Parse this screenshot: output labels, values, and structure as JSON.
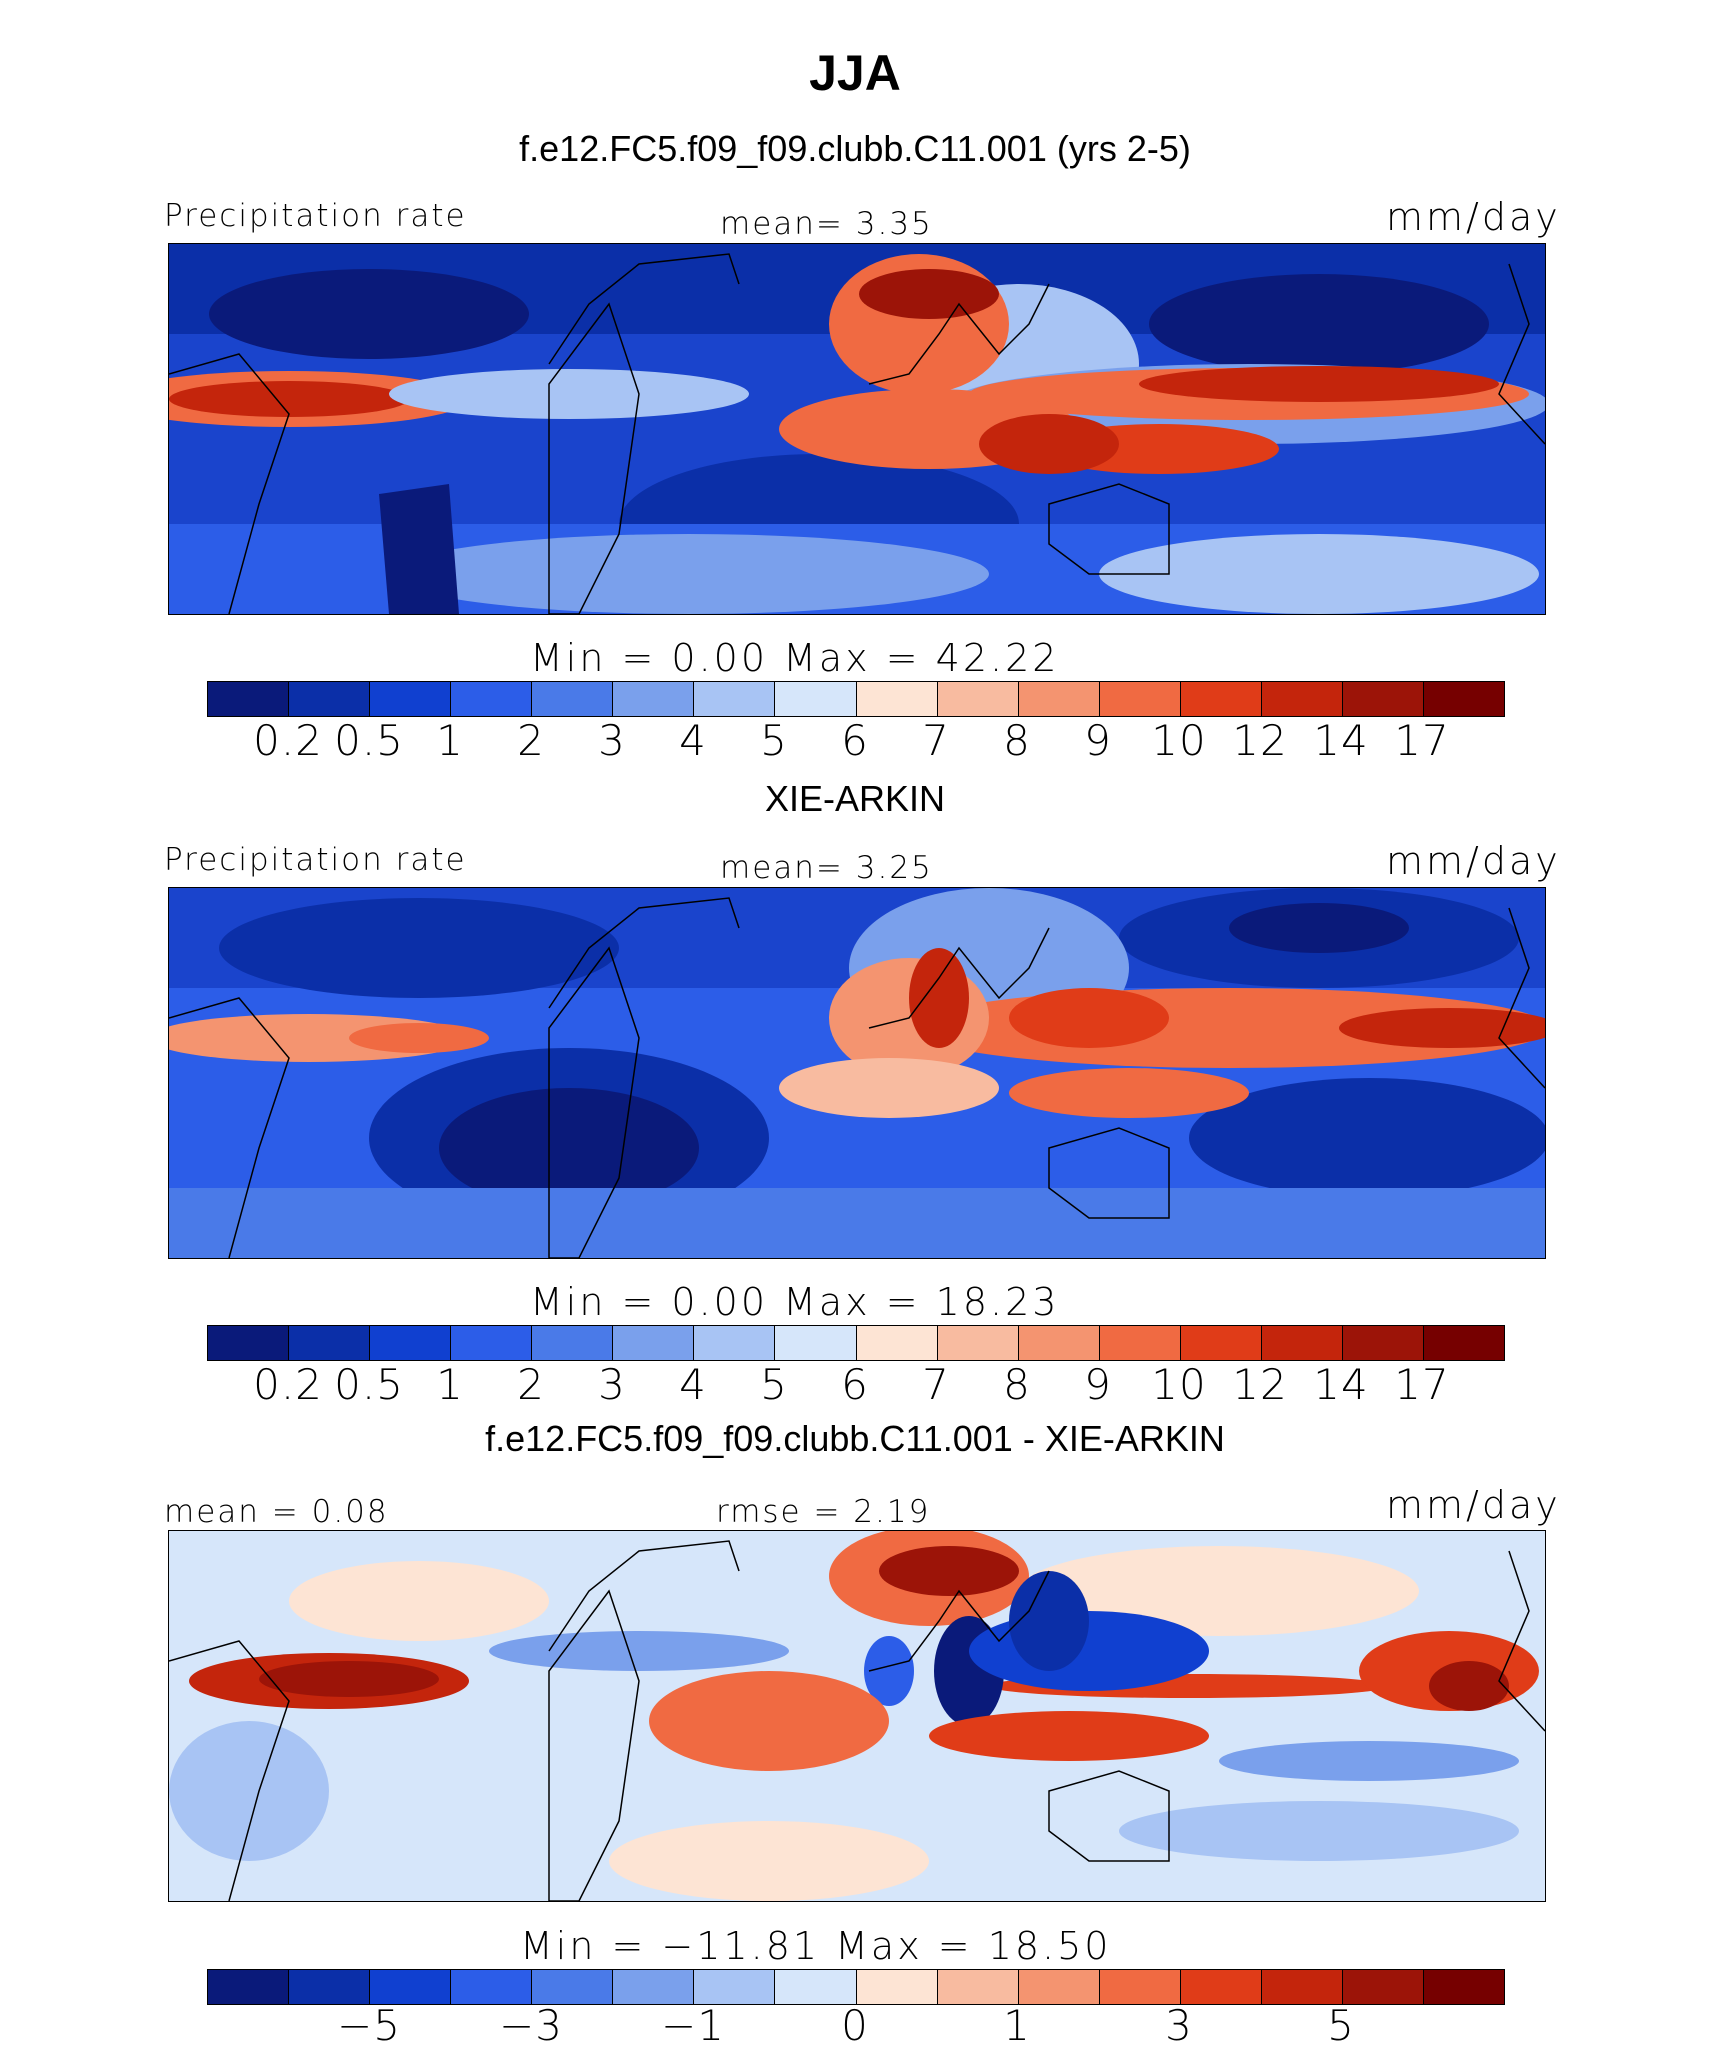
{
  "title": "JJA",
  "panels": [
    {
      "subtitle": "f.e12.FC5.f09_f09.clubb.C11.001 (yrs 2-5)",
      "left_label": "Precipitation rate",
      "center_label": "mean=    3.35",
      "right_label": "mm/day",
      "minmax_label": "Min  =     0.00  Max  =    42.22",
      "colorbar_ticks": [
        "0.2",
        "0.5",
        "1",
        "2",
        "3",
        "4",
        "5",
        "6",
        "7",
        "8",
        "9",
        "10",
        "12",
        "14",
        "17"
      ],
      "stats": {
        "mean": 3.35,
        "min": 0.0,
        "max": 42.22
      }
    },
    {
      "subtitle": "XIE-ARKIN",
      "left_label": "Precipitation rate",
      "center_label": "mean=    3.25",
      "right_label": "mm/day",
      "minmax_label": "Min  =     0.00  Max  =    18.23",
      "colorbar_ticks": [
        "0.2",
        "0.5",
        "1",
        "2",
        "3",
        "4",
        "5",
        "6",
        "7",
        "8",
        "9",
        "10",
        "12",
        "14",
        "17"
      ],
      "stats": {
        "mean": 3.25,
        "min": 0.0,
        "max": 18.23
      }
    },
    {
      "subtitle": "f.e12.FC5.f09_f09.clubb.C11.001 - XIE-ARKIN",
      "left_label": "mean =     0.08",
      "center_label": "rmse =     2.19",
      "right_label": "mm/day",
      "minmax_label": "Min  = −11.81  Max  =    18.50",
      "colorbar_ticks": [
        "−5",
        "−3",
        "−1",
        "0",
        "1",
        "3",
        "5"
      ],
      "stats": {
        "mean": 0.08,
        "rmse": 2.19,
        "min": -11.81,
        "max": 18.5
      }
    }
  ],
  "colorbar_colors": [
    "#0a1a7a",
    "#0b2fa8",
    "#1040d0",
    "#2c5de8",
    "#4a7ae8",
    "#7aa0ec",
    "#a8c4f4",
    "#d6e6fa",
    "#fde4d4",
    "#f8bba0",
    "#f49470",
    "#f06a42",
    "#e03c18",
    "#c4250c",
    "#9c1408",
    "#760000"
  ]
}
